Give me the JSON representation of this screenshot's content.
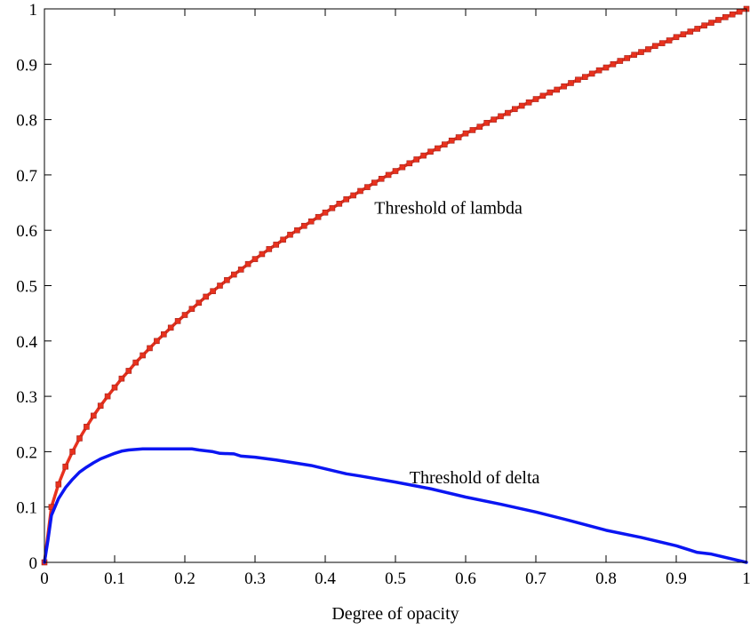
{
  "chart_data": {
    "type": "line",
    "title": "",
    "xlabel": "Degree of opacity",
    "ylabel": "",
    "xlim": [
      0,
      1
    ],
    "ylim": [
      0,
      1
    ],
    "xticks": [
      "0",
      "0.1",
      "0.2",
      "0.3",
      "0.4",
      "0.5",
      "0.6",
      "0.7",
      "0.8",
      "0.9",
      "1"
    ],
    "yticks": [
      "0",
      "0.1",
      "0.2",
      "0.3",
      "0.4",
      "0.5",
      "0.6",
      "0.7",
      "0.8",
      "0.9",
      "1"
    ],
    "grid": false,
    "legend": "none",
    "series": [
      {
        "color": "#e8321e",
        "marker": "square",
        "x": [
          0,
          0.01,
          0.02,
          0.03,
          0.04,
          0.05,
          0.06,
          0.07,
          0.08,
          0.09,
          0.1,
          0.11,
          0.12,
          0.13,
          0.14,
          0.15,
          0.16,
          0.17,
          0.18,
          0.19,
          0.2,
          0.21,
          0.22,
          0.23,
          0.24,
          0.25,
          0.26,
          0.27,
          0.28,
          0.29,
          0.3,
          0.31,
          0.32,
          0.33,
          0.34,
          0.35,
          0.36,
          0.37,
          0.38,
          0.39,
          0.4,
          0.41,
          0.42,
          0.43,
          0.44,
          0.45,
          0.46,
          0.47,
          0.48,
          0.49,
          0.5,
          0.51,
          0.52,
          0.53,
          0.54,
          0.55,
          0.56,
          0.57,
          0.58,
          0.59,
          0.6,
          0.61,
          0.62,
          0.63,
          0.64,
          0.65,
          0.66,
          0.67,
          0.68,
          0.69,
          0.7,
          0.71,
          0.72,
          0.73,
          0.74,
          0.75,
          0.76,
          0.77,
          0.78,
          0.79,
          0.8,
          0.81,
          0.82,
          0.83,
          0.84,
          0.85,
          0.86,
          0.87,
          0.88,
          0.89,
          0.9,
          0.91,
          0.92,
          0.93,
          0.94,
          0.95,
          0.96,
          0.97,
          0.98,
          0.99,
          1
        ],
        "values": [
          0,
          0.1,
          0.141,
          0.173,
          0.2,
          0.224,
          0.245,
          0.265,
          0.283,
          0.3,
          0.316,
          0.332,
          0.346,
          0.361,
          0.374,
          0.387,
          0.4,
          0.412,
          0.424,
          0.436,
          0.447,
          0.458,
          0.469,
          0.48,
          0.49,
          0.5,
          0.51,
          0.52,
          0.529,
          0.539,
          0.548,
          0.557,
          0.566,
          0.574,
          0.583,
          0.592,
          0.6,
          0.608,
          0.616,
          0.624,
          0.632,
          0.64,
          0.648,
          0.656,
          0.663,
          0.671,
          0.678,
          0.686,
          0.693,
          0.7,
          0.707,
          0.714,
          0.721,
          0.728,
          0.735,
          0.742,
          0.748,
          0.755,
          0.762,
          0.768,
          0.775,
          0.781,
          0.787,
          0.794,
          0.8,
          0.806,
          0.812,
          0.819,
          0.825,
          0.831,
          0.837,
          0.843,
          0.849,
          0.854,
          0.86,
          0.866,
          0.872,
          0.877,
          0.883,
          0.889,
          0.894,
          0.9,
          0.906,
          0.911,
          0.917,
          0.922,
          0.927,
          0.933,
          0.938,
          0.943,
          0.949,
          0.954,
          0.959,
          0.964,
          0.97,
          0.975,
          0.98,
          0.985,
          0.99,
          0.995,
          1
        ]
      },
      {
        "color": "#0b16f2",
        "marker": "none",
        "x": [
          0,
          0.005,
          0.01,
          0.02,
          0.03,
          0.04,
          0.05,
          0.06,
          0.07,
          0.08,
          0.09,
          0.1,
          0.11,
          0.12,
          0.13,
          0.14,
          0.15,
          0.2,
          0.21,
          0.22,
          0.24,
          0.25,
          0.27,
          0.28,
          0.3,
          0.33,
          0.35,
          0.38,
          0.4,
          0.43,
          0.45,
          0.5,
          0.55,
          0.6,
          0.65,
          0.7,
          0.75,
          0.8,
          0.85,
          0.9,
          0.93,
          0.95,
          1
        ],
        "values": [
          0,
          0.04,
          0.085,
          0.115,
          0.135,
          0.15,
          0.163,
          0.172,
          0.18,
          0.187,
          0.192,
          0.197,
          0.201,
          0.203,
          0.204,
          0.205,
          0.205,
          0.205,
          0.205,
          0.203,
          0.2,
          0.197,
          0.196,
          0.192,
          0.19,
          0.185,
          0.181,
          0.175,
          0.169,
          0.16,
          0.156,
          0.145,
          0.133,
          0.118,
          0.105,
          0.091,
          0.075,
          0.058,
          0.045,
          0.03,
          0.018,
          0.015,
          0
        ]
      }
    ],
    "annotations": [
      {
        "text": "Threshold of lambda",
        "x": 0.47,
        "y": 0.63
      },
      {
        "text": "Threshold of delta",
        "x": 0.52,
        "y": 0.143
      }
    ]
  }
}
